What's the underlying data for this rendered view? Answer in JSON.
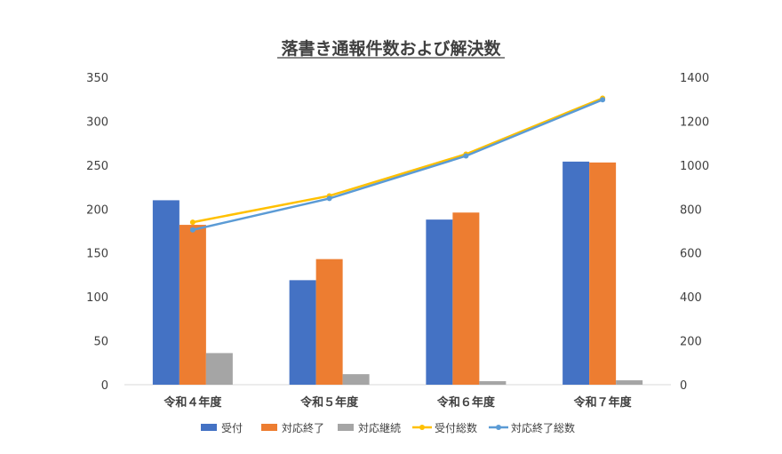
{
  "chart_data": {
    "type": "bar",
    "title": "落書き通報件数および解決数",
    "categories": [
      "令和４年度",
      "令和５年度",
      "令和６年度",
      "令和７年度"
    ],
    "y_left": {
      "min": 0,
      "max": 350,
      "ticks": [
        "0",
        "50",
        "100",
        "150",
        "200",
        "250",
        "300",
        "350"
      ]
    },
    "y_right": {
      "min": 0,
      "max": 1400,
      "ticks": [
        "0",
        "200",
        "400",
        "600",
        "800",
        "1000",
        "1200",
        "1400"
      ]
    },
    "series": [
      {
        "name": "受付",
        "kind": "bar",
        "axis": "left",
        "color": "#4472C4",
        "values": [
          210,
          119,
          188,
          254
        ]
      },
      {
        "name": "対応終了",
        "kind": "bar",
        "axis": "left",
        "color": "#ED7D31",
        "values": [
          182,
          143,
          196,
          253
        ]
      },
      {
        "name": "対応継続",
        "kind": "bar",
        "axis": "left",
        "color": "#A5A5A5",
        "values": [
          36,
          12,
          4,
          5
        ]
      },
      {
        "name": "受付総数",
        "kind": "line",
        "axis": "right",
        "color": "#FFC000",
        "values": [
          740,
          860,
          1050,
          1305
        ]
      },
      {
        "name": "対応終了総数",
        "kind": "line",
        "axis": "right",
        "color": "#5B9BD5",
        "values": [
          705,
          848,
          1042,
          1298
        ]
      }
    ],
    "grid": false,
    "legend": "bottom"
  }
}
